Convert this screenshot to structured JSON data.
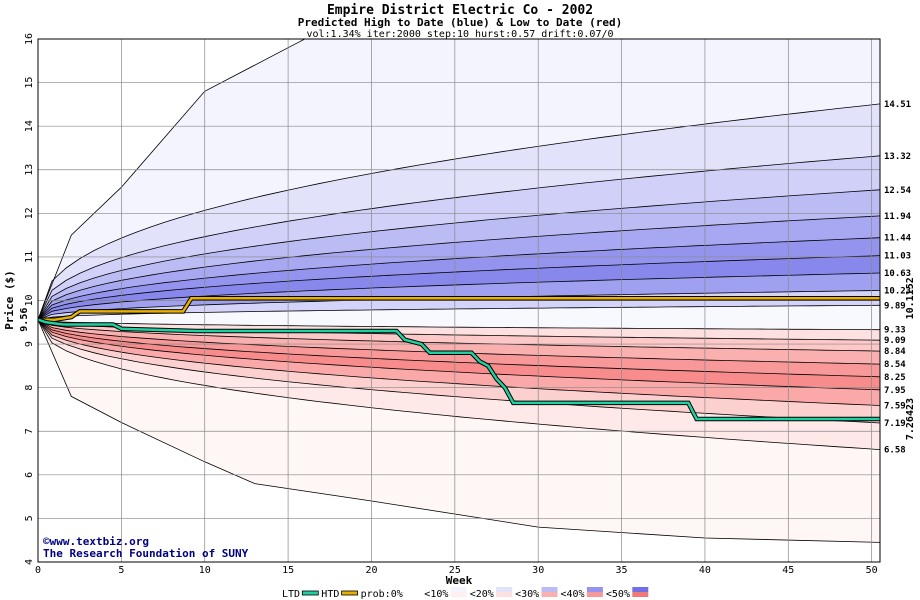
{
  "chart_data": {
    "type": "area",
    "title": "Empire District Electric Co - 2002",
    "subtitle": "Predicted High to Date (blue) &  Low to Date (red)",
    "params": "vol:1.34% iter:2000 step:10 hurst:0.57 drift:0.07/0",
    "xlabel": "Week",
    "ylabel": "Price ($)",
    "xlim": [
      0,
      50.5
    ],
    "ylim": [
      4,
      16
    ],
    "xticks": [
      "0",
      "5",
      "10",
      "15",
      "20",
      "25",
      "30",
      "35",
      "40",
      "45",
      "50"
    ],
    "yticks": [
      "4",
      "5",
      "6",
      "7",
      "8",
      "9",
      "10",
      "11",
      "12",
      "13",
      "14",
      "15",
      "16"
    ],
    "grid": true,
    "start_price": 9.56,
    "start_label": "9.56",
    "high_bands": [
      {
        "end": 14.51,
        "label": "14.51"
      },
      {
        "end": 13.32,
        "label": "13.32"
      },
      {
        "end": 12.54,
        "label": "12.54"
      },
      {
        "end": 11.94,
        "label": "11.94"
      },
      {
        "end": 11.44,
        "label": "11.44"
      },
      {
        "end": 11.03,
        "label": "11.03"
      },
      {
        "end": 10.63,
        "label": "10.63"
      },
      {
        "end": 10.23,
        "label": "10.23"
      },
      {
        "end": 9.89,
        "label": "9.89"
      }
    ],
    "low_bands": [
      {
        "end": 9.33,
        "label": "9.33"
      },
      {
        "end": 9.09,
        "label": "9.09"
      },
      {
        "end": 8.84,
        "label": "8.84"
      },
      {
        "end": 8.54,
        "label": "8.54"
      },
      {
        "end": 8.25,
        "label": "8.25"
      },
      {
        "end": 7.95,
        "label": "7.95"
      },
      {
        "end": 7.59,
        "label": "7.59"
      },
      {
        "end": 7.19,
        "label": "7.19"
      },
      {
        "end": 6.58,
        "label": "6.58"
      }
    ],
    "outer_high": {
      "x": [
        0,
        2,
        5,
        10,
        15,
        16,
        50.5
      ],
      "y": [
        9.56,
        11.5,
        12.6,
        14.8,
        15.8,
        16,
        16
      ]
    },
    "outer_low": {
      "x": [
        0,
        2,
        5,
        10,
        13,
        20,
        30,
        40,
        50.5
      ],
      "y": [
        9.56,
        7.8,
        7.2,
        6.3,
        5.8,
        5.4,
        4.8,
        4.55,
        4.45
      ]
    },
    "htd_series": {
      "name": "HTD",
      "color": "#e8b000",
      "x": [
        0,
        1,
        2,
        2.5,
        8.7,
        9.2,
        50.5
      ],
      "y": [
        9.56,
        9.56,
        9.62,
        9.75,
        9.75,
        10.05,
        10.05
      ],
      "last_label": "10.1152"
    },
    "ltd_series": {
      "name": "LTD",
      "color": "#20d0a0",
      "x": [
        0,
        0.5,
        1.5,
        4.5,
        5,
        9.5,
        21.5,
        22,
        23,
        23.5,
        26,
        26.5,
        27,
        27.5,
        28,
        28.5,
        39,
        39.5,
        50.5
      ],
      "y": [
        9.56,
        9.5,
        9.45,
        9.45,
        9.35,
        9.3,
        9.3,
        9.1,
        9.0,
        8.8,
        8.8,
        8.6,
        8.5,
        8.2,
        8.0,
        7.65,
        7.65,
        7.28,
        7.28
      ],
      "last_label": "7.26423"
    },
    "legend": [
      "LTD",
      "HTD",
      "prob:0%",
      "<10%",
      "<20%",
      "<30%",
      "<40%",
      "<50%"
    ],
    "legend_position": "bottom"
  },
  "watermark": {
    "line1": "©www.textbiz.org",
    "line2": "The Research Foundation of SUNY"
  },
  "colors": {
    "high_fills": [
      "#f4f4ff",
      "#e2e2fb",
      "#d0d0f8",
      "#bcbcf5",
      "#a8a8f2",
      "#9494ee",
      "#8888ec",
      "#a0a0f0",
      "#d4d4fa"
    ],
    "low_fills": [
      "#fdf0f0",
      "#fde0e0",
      "#fdc8c8",
      "#fbb0b0",
      "#f99898",
      "#f88c8c",
      "#fba8a8",
      "#fdd0d0",
      "#ffe8e8"
    ],
    "outer_low_fill": "#fff6f6"
  }
}
